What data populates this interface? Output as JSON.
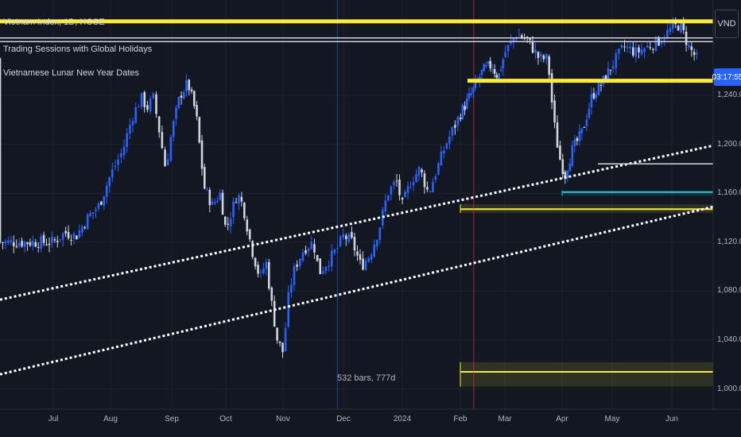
{
  "legend": {
    "symbol": "Vietnam Index, 1D, HOSE",
    "indicator_1": "Trading Sessions with Global Holidays",
    "indicator_2": "Vietnamese Lunar New Year Dates"
  },
  "currency_label": "VND",
  "countdown": "03:17:55",
  "bar_count": "532 bars, 777d",
  "colors": {
    "background": "#131722",
    "up": "#2962ff",
    "down": "#d1d4dc",
    "yellow": "#ffeb3b",
    "teal": "#26c6da",
    "vline_blue": "#2962ff",
    "vline_red": "#f23645",
    "countdown_bg": "#2962ff"
  },
  "chart_data": {
    "type": "candlestick",
    "y_axis": {
      "ticks": [
        1000,
        1040,
        1080,
        1120,
        1160,
        1200,
        1240
      ],
      "tick_labels": [
        "1,000.00",
        "1,040.00",
        "1,080.00",
        "1,120.00",
        "1,160.00",
        "1,200.00",
        "1,240.00"
      ],
      "range": [
        990,
        1305
      ]
    },
    "x_axis": {
      "tick_labels": [
        "Jul",
        "Aug",
        "Sep",
        "Oct",
        "Nov",
        "Dec",
        "2024",
        "Feb",
        "Mar",
        "Apr",
        "May",
        "Jun"
      ],
      "month_index": [
        0,
        1,
        2,
        3,
        4,
        5,
        6,
        7,
        8,
        9,
        10,
        11
      ]
    },
    "close_path": [
      [
        0,
        1120
      ],
      [
        0.2,
        1128
      ],
      [
        0.4,
        1125
      ],
      [
        0.6,
        1140
      ],
      [
        0.8,
        1150
      ],
      [
        1.0,
        1175
      ],
      [
        1.2,
        1195
      ],
      [
        1.35,
        1222
      ],
      [
        1.5,
        1238
      ],
      [
        1.6,
        1230
      ],
      [
        1.7,
        1238
      ],
      [
        1.8,
        1210
      ],
      [
        1.9,
        1180
      ],
      [
        2.0,
        1210
      ],
      [
        2.15,
        1240
      ],
      [
        2.3,
        1250
      ],
      [
        2.45,
        1225
      ],
      [
        2.6,
        1165
      ],
      [
        2.75,
        1150
      ],
      [
        2.9,
        1160
      ],
      [
        3.0,
        1130
      ],
      [
        3.1,
        1145
      ],
      [
        3.2,
        1160
      ],
      [
        3.3,
        1150
      ],
      [
        3.45,
        1115
      ],
      [
        3.6,
        1090
      ],
      [
        3.7,
        1105
      ],
      [
        3.8,
        1070
      ],
      [
        3.9,
        1040
      ],
      [
        4.0,
        1030
      ],
      [
        4.1,
        1080
      ],
      [
        4.2,
        1100
      ],
      [
        4.35,
        1115
      ],
      [
        4.5,
        1120
      ],
      [
        4.6,
        1095
      ],
      [
        4.75,
        1105
      ],
      [
        4.9,
        1115
      ],
      [
        5.0,
        1125
      ],
      [
        5.15,
        1120
      ],
      [
        5.3,
        1100
      ],
      [
        5.45,
        1110
      ],
      [
        5.6,
        1130
      ],
      [
        5.75,
        1160
      ],
      [
        5.9,
        1170
      ],
      [
        6.0,
        1150
      ],
      [
        6.15,
        1170
      ],
      [
        6.3,
        1180
      ],
      [
        6.45,
        1160
      ],
      [
        6.6,
        1180
      ],
      [
        6.75,
        1200
      ],
      [
        6.9,
        1215
      ],
      [
        7.0,
        1225
      ],
      [
        7.15,
        1235
      ],
      [
        7.3,
        1245
      ],
      [
        7.5,
        1260
      ],
      [
        7.7,
        1265
      ],
      [
        7.85,
        1255
      ],
      [
        8.0,
        1275
      ],
      [
        8.2,
        1290
      ],
      [
        8.4,
        1285
      ],
      [
        8.6,
        1270
      ],
      [
        8.75,
        1270
      ],
      [
        8.85,
        1220
      ],
      [
        8.95,
        1190
      ],
      [
        9.05,
        1175
      ],
      [
        9.2,
        1195
      ],
      [
        9.4,
        1210
      ],
      [
        9.6,
        1240
      ],
      [
        9.8,
        1250
      ],
      [
        10.0,
        1265
      ],
      [
        10.2,
        1280
      ],
      [
        10.4,
        1275
      ],
      [
        10.6,
        1280
      ],
      [
        10.8,
        1285
      ],
      [
        11.0,
        1295
      ],
      [
        11.15,
        1298
      ],
      [
        11.3,
        1280
      ],
      [
        11.45,
        1270
      ]
    ],
    "horizontal_lines": [
      {
        "price": 1300.5,
        "color": "yellow"
      },
      {
        "price": 1287,
        "color": "white"
      },
      {
        "price": 1284,
        "color": "white"
      },
      {
        "price": 1252,
        "color": "yellow"
      },
      {
        "price": 1184,
        "color": "white"
      }
    ],
    "trendlines": [
      {
        "from": [
          0,
          1073
        ],
        "to": [
          11.6,
          1199
        ]
      },
      {
        "from": [
          0,
          1012
        ],
        "to": [
          11.6,
          1149
        ]
      }
    ],
    "zones": [
      {
        "from_month": 7.0,
        "to_month": 11.6,
        "top": 1151,
        "mid": 1147,
        "bottom": 1144,
        "color": "yellow"
      },
      {
        "from_month": 9.0,
        "to_month": 11.6,
        "top": 1162,
        "mid": 1161,
        "bottom": 1158,
        "color": "teal"
      },
      {
        "from_month": 7.0,
        "to_month": 11.6,
        "top": 1022,
        "mid": 1014,
        "bottom": 1002,
        "color": "yellow"
      }
    ],
    "vlines": [
      {
        "month": 4.9,
        "color": "vline_blue"
      },
      {
        "month": 7.3,
        "color": "vline_red"
      }
    ]
  }
}
